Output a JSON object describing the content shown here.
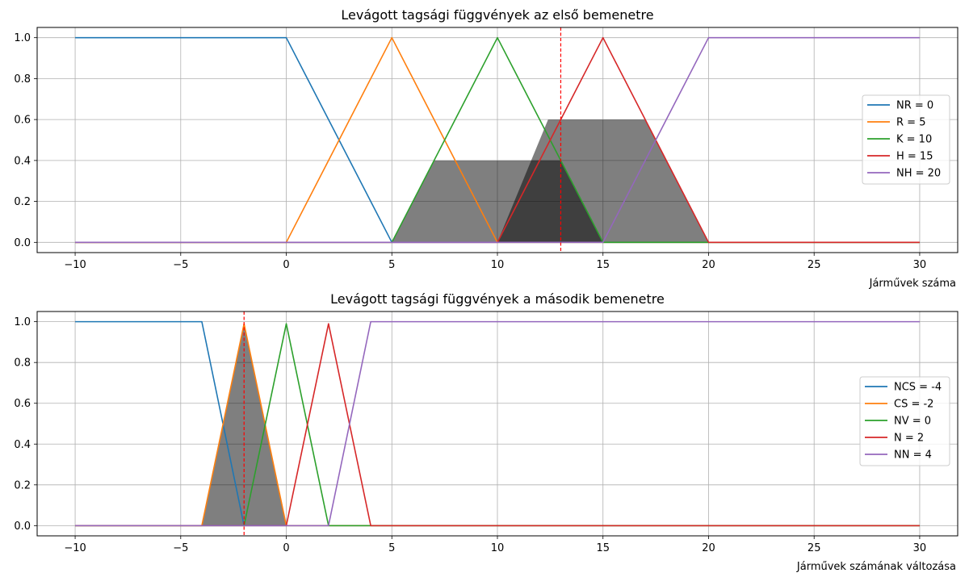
{
  "chart_data": [
    {
      "type": "line",
      "title": "Levágott tagsági függvények az első bemenetre",
      "xlabel": "Járművek száma",
      "ylabel": "",
      "xlim": [
        -11.8,
        31.8
      ],
      "ylim": [
        -0.05,
        1.05
      ],
      "xticks": [
        -10,
        -5,
        0,
        5,
        10,
        15,
        20,
        25,
        30
      ],
      "xtick_labels": [
        "−10",
        "−5",
        "0",
        "5",
        "10",
        "15",
        "20",
        "25",
        "30"
      ],
      "yticks": [
        0,
        0.2,
        0.4,
        0.6,
        0.8,
        1.0
      ],
      "ytick_labels": [
        "0.0",
        "0.2",
        "0.4",
        "0.6",
        "0.8",
        "1.0"
      ],
      "grid": true,
      "legend": "center-right",
      "series": [
        {
          "name": "NR = 0",
          "color": "#1f77b4",
          "x": [
            -10,
            0,
            5,
            30
          ],
          "y": [
            1,
            1,
            0,
            0
          ]
        },
        {
          "name": "R = 5",
          "color": "#ff7f0e",
          "x": [
            -10,
            0,
            5,
            10,
            30
          ],
          "y": [
            0,
            0,
            1,
            0,
            0
          ]
        },
        {
          "name": "K = 10",
          "color": "#2ca02c",
          "x": [
            -10,
            5,
            10,
            15,
            30
          ],
          "y": [
            0,
            0,
            1,
            0,
            0
          ]
        },
        {
          "name": "H = 15",
          "color": "#d62728",
          "x": [
            -10,
            10,
            15,
            20,
            30
          ],
          "y": [
            0,
            0,
            1,
            0,
            0
          ]
        },
        {
          "name": "NH = 20",
          "color": "#9467bd",
          "x": [
            -10,
            15,
            20,
            30
          ],
          "y": [
            0,
            0,
            1,
            1
          ]
        }
      ],
      "filled_regions": [
        {
          "x": [
            5,
            7,
            13,
            15
          ],
          "y": [
            0,
            0.4,
            0.4,
            0
          ],
          "opacity": 0.5
        },
        {
          "x": [
            10,
            12.4,
            17,
            20
          ],
          "y": [
            0,
            0.6,
            0.6,
            0
          ],
          "opacity": 0.5
        }
      ],
      "vline": {
        "x": 13,
        "color": "#ff0000",
        "style": "dashed"
      }
    },
    {
      "type": "line",
      "title": "Levágott tagsági függvények a második bemenetre",
      "xlabel": "Járművek számának változása",
      "ylabel": "",
      "xlim": [
        -11.8,
        31.8
      ],
      "ylim": [
        -0.05,
        1.05
      ],
      "xticks": [
        -10,
        -5,
        0,
        5,
        10,
        15,
        20,
        25,
        30
      ],
      "xtick_labels": [
        "−10",
        "−5",
        "0",
        "5",
        "10",
        "15",
        "20",
        "25",
        "30"
      ],
      "yticks": [
        0,
        0.2,
        0.4,
        0.6,
        0.8,
        1.0
      ],
      "ytick_labels": [
        "0.0",
        "0.2",
        "0.4",
        "0.6",
        "0.8",
        "1.0"
      ],
      "grid": true,
      "legend": "center-right",
      "series": [
        {
          "name": "NCS = -4",
          "color": "#1f77b4",
          "x": [
            -10,
            -4,
            -2,
            30
          ],
          "y": [
            1,
            1,
            0,
            0
          ]
        },
        {
          "name": "CS = -2",
          "color": "#ff7f0e",
          "x": [
            -10,
            -4,
            -2,
            0,
            30
          ],
          "y": [
            0,
            0,
            0.99,
            0,
            0
          ]
        },
        {
          "name": "NV = 0",
          "color": "#2ca02c",
          "x": [
            -10,
            -2,
            0,
            2,
            30
          ],
          "y": [
            0,
            0,
            0.99,
            0,
            0
          ]
        },
        {
          "name": "N = 2",
          "color": "#d62728",
          "x": [
            -10,
            0,
            2,
            4,
            30
          ],
          "y": [
            0,
            0,
            0.99,
            0,
            0
          ]
        },
        {
          "name": "NN = 4",
          "color": "#9467bd",
          "x": [
            -10,
            2,
            4,
            30
          ],
          "y": [
            0,
            0,
            1,
            1
          ]
        }
      ],
      "filled_regions": [
        {
          "x": [
            -4,
            -2,
            0
          ],
          "y": [
            0,
            0.99,
            0
          ],
          "opacity": 0.5
        }
      ],
      "vline": {
        "x": -2,
        "color": "#ff0000",
        "style": "dashed"
      }
    }
  ]
}
